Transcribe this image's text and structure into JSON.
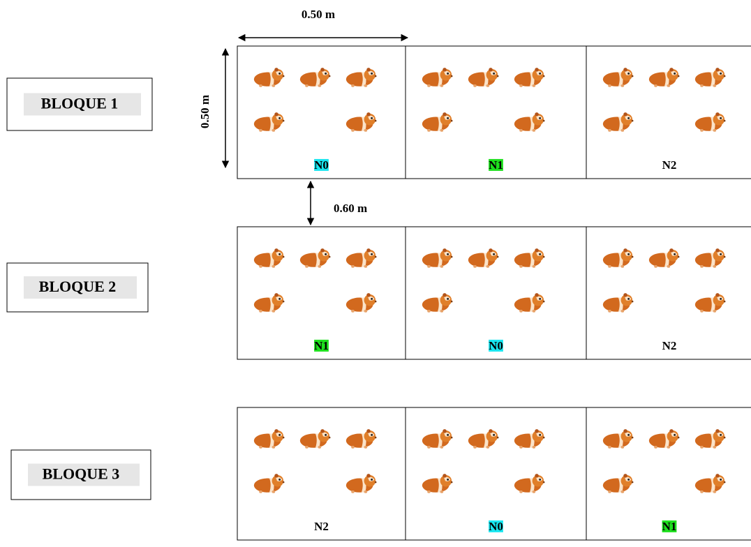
{
  "dimensions": {
    "width": "0.50 m",
    "height": "0.50 m",
    "spacing": "0.60 m"
  },
  "blocks": [
    {
      "label": "BLOQUE 1",
      "cells": [
        {
          "label": "N0",
          "highlight": "#19e6f0"
        },
        {
          "label": "N1",
          "highlight": "#1ee01e"
        },
        {
          "label": "N2"
        }
      ]
    },
    {
      "label": "BLOQUE 2",
      "cells": [
        {
          "label": "N1",
          "highlight": "#1ee01e"
        },
        {
          "label": "N0",
          "highlight": "#19e6f0"
        },
        {
          "label": "N2"
        }
      ]
    },
    {
      "label": "BLOQUE 3",
      "cells": [
        {
          "label": "N2"
        },
        {
          "label": "N0",
          "highlight": "#19e6f0"
        },
        {
          "label": "N1",
          "highlight": "#1ee01e"
        }
      ]
    }
  ]
}
